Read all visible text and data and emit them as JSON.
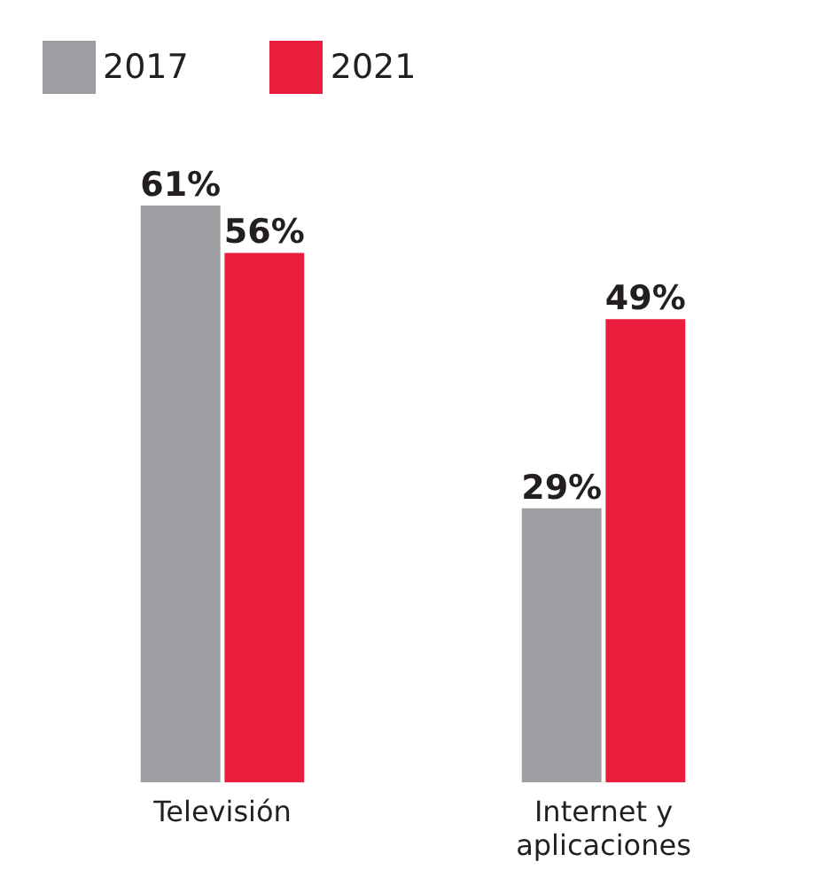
{
  "chart_data": {
    "type": "bar",
    "categories": [
      "Televisión",
      "Internet y aplicaciones"
    ],
    "series": [
      {
        "name": "2017",
        "color": "#9d9ea2",
        "values": [
          61,
          29
        ],
        "value_labels": [
          "61%",
          "29%"
        ]
      },
      {
        "name": "2021",
        "color": "#ec1c3c",
        "values": [
          56,
          49
        ],
        "value_labels": [
          "56%",
          "49%"
        ]
      }
    ],
    "legend": "top left",
    "grid": false
  }
}
